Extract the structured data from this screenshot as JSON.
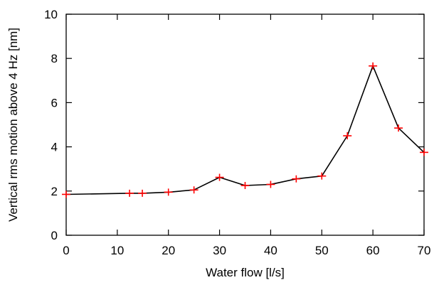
{
  "chart_data": {
    "type": "line",
    "xlabel": "Water flow [l/s]",
    "ylabel": "Vertical rms motion above 4 Hz [nm]",
    "xlim": [
      0,
      70
    ],
    "ylim": [
      0,
      10
    ],
    "xticks": [
      0,
      10,
      20,
      30,
      40,
      50,
      60,
      70
    ],
    "yticks": [
      0,
      2,
      4,
      6,
      8,
      10
    ],
    "grid": false,
    "series": [
      {
        "x": [
          0,
          12.4,
          14.9,
          20,
          25,
          30,
          35,
          40,
          45,
          50,
          55,
          60,
          65,
          70
        ],
        "y": [
          1.85,
          1.9,
          1.9,
          1.95,
          2.05,
          2.62,
          2.25,
          2.3,
          2.55,
          2.68,
          4.5,
          7.66,
          4.85,
          3.75
        ]
      }
    ],
    "colors": {
      "line": "#000000",
      "marker": "#ff0000"
    },
    "marker": "plus"
  }
}
